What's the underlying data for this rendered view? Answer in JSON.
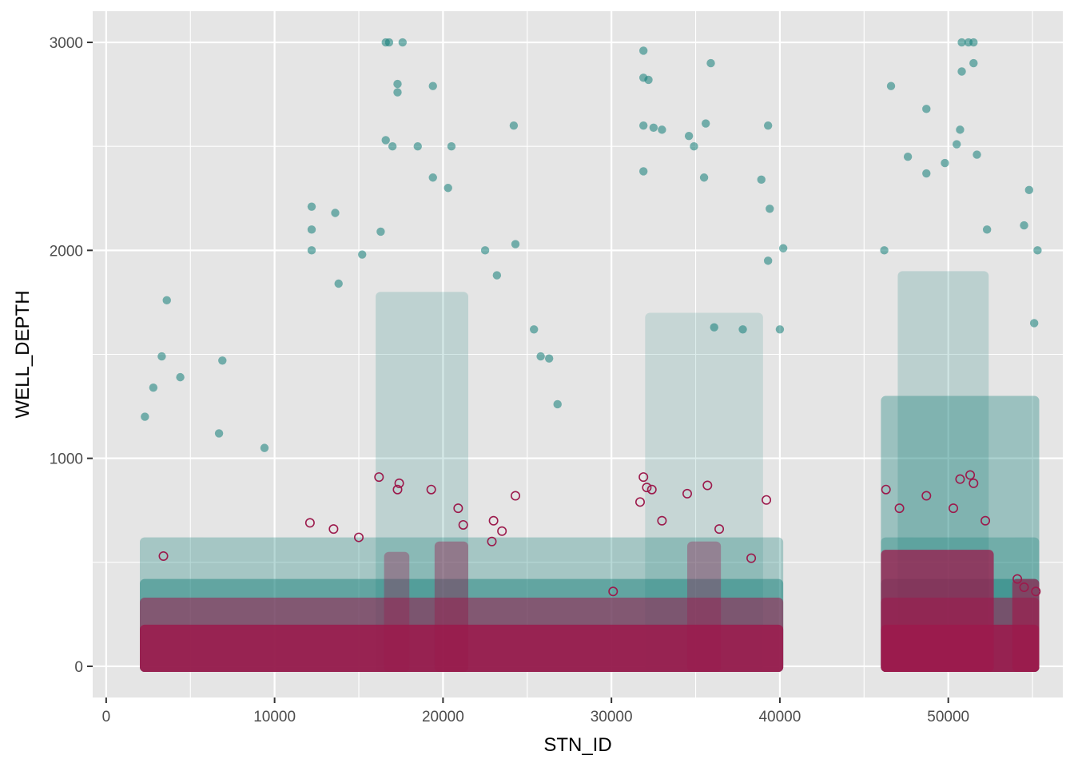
{
  "chart_data": {
    "type": "scatter",
    "title": "",
    "xlabel": "STN_ID",
    "ylabel": "WELL_DEPTH",
    "xlim": [
      -800,
      56800
    ],
    "ylim": [
      -150,
      3150
    ],
    "x_ticks": [
      0,
      10000,
      20000,
      30000,
      40000,
      50000
    ],
    "x_tick_labels": [
      "0",
      "10000",
      "20000",
      "30000",
      "40000",
      "50000"
    ],
    "y_ticks": [
      0,
      1000,
      2000,
      3000
    ],
    "y_tick_labels": [
      "0",
      "1000",
      "2000",
      "3000"
    ],
    "grid": true,
    "legend": "none",
    "background": "#e5e5e5",
    "grid_color": "#ffffff",
    "series": [
      {
        "marker": "filled-circle",
        "color": "#127d78",
        "opacity": 0.55,
        "points": [
          [
            2300,
            1200
          ],
          [
            2800,
            1340
          ],
          [
            3300,
            1490
          ],
          [
            3600,
            1760
          ],
          [
            4400,
            1390
          ],
          [
            6900,
            1470
          ],
          [
            6700,
            1120
          ],
          [
            9400,
            1050
          ],
          [
            12200,
            2210
          ],
          [
            12200,
            2100
          ],
          [
            12200,
            2000
          ],
          [
            13600,
            2180
          ],
          [
            13800,
            1840
          ],
          [
            15200,
            1980
          ],
          [
            16300,
            2090
          ],
          [
            16600,
            3000
          ],
          [
            16800,
            3000
          ],
          [
            17600,
            3000
          ],
          [
            16600,
            2530
          ],
          [
            17000,
            2500
          ],
          [
            17300,
            2800
          ],
          [
            17300,
            2760
          ],
          [
            19400,
            2790
          ],
          [
            19400,
            2350
          ],
          [
            18500,
            2500
          ],
          [
            20500,
            2500
          ],
          [
            20300,
            2300
          ],
          [
            22500,
            2000
          ],
          [
            24200,
            2600
          ],
          [
            24300,
            2030
          ],
          [
            23200,
            1880
          ],
          [
            25400,
            1620
          ],
          [
            25800,
            1490
          ],
          [
            26300,
            1480
          ],
          [
            26800,
            1260
          ],
          [
            31900,
            2960
          ],
          [
            31900,
            2830
          ],
          [
            32200,
            2820
          ],
          [
            31900,
            2600
          ],
          [
            32500,
            2590
          ],
          [
            31900,
            2380
          ],
          [
            33000,
            2580
          ],
          [
            34600,
            2550
          ],
          [
            34900,
            2500
          ],
          [
            35600,
            2610
          ],
          [
            35900,
            2900
          ],
          [
            35500,
            2350
          ],
          [
            39300,
            2600
          ],
          [
            38900,
            2340
          ],
          [
            39400,
            2200
          ],
          [
            40200,
            2010
          ],
          [
            39300,
            1950
          ],
          [
            36100,
            1630
          ],
          [
            37800,
            1620
          ],
          [
            40000,
            1620
          ],
          [
            46600,
            2790
          ],
          [
            48700,
            2680
          ],
          [
            50800,
            3000
          ],
          [
            51200,
            3000
          ],
          [
            51500,
            3000
          ],
          [
            50800,
            2860
          ],
          [
            51500,
            2900
          ],
          [
            50700,
            2580
          ],
          [
            50500,
            2510
          ],
          [
            54500,
            2120
          ],
          [
            54800,
            2290
          ],
          [
            55300,
            2000
          ],
          [
            55100,
            1650
          ],
          [
            46200,
            2000
          ],
          [
            47600,
            2450
          ],
          [
            48700,
            2370
          ],
          [
            49800,
            2420
          ],
          [
            51700,
            2460
          ],
          [
            52300,
            2100
          ]
        ]
      },
      {
        "marker": "open-circle",
        "color": "#9c1a4c",
        "opacity": 1.0,
        "points": [
          [
            16200,
            910
          ],
          [
            17400,
            880
          ],
          [
            17300,
            850
          ],
          [
            19300,
            850
          ],
          [
            20900,
            760
          ],
          [
            23000,
            700
          ],
          [
            23500,
            650
          ],
          [
            24300,
            820
          ],
          [
            31900,
            910
          ],
          [
            32100,
            860
          ],
          [
            32400,
            850
          ],
          [
            31700,
            790
          ],
          [
            33000,
            700
          ],
          [
            34500,
            830
          ],
          [
            35700,
            870
          ],
          [
            39200,
            800
          ],
          [
            46300,
            850
          ],
          [
            47100,
            760
          ],
          [
            48700,
            820
          ],
          [
            50700,
            900
          ],
          [
            51300,
            920
          ],
          [
            51500,
            880
          ],
          [
            50300,
            760
          ],
          [
            52200,
            700
          ],
          [
            54100,
            420
          ],
          [
            54500,
            380
          ],
          [
            55200,
            360
          ],
          [
            12100,
            690
          ],
          [
            13500,
            660
          ],
          [
            15000,
            620
          ],
          [
            21200,
            680
          ],
          [
            22900,
            600
          ],
          [
            30100,
            360
          ],
          [
            36400,
            660
          ],
          [
            38300,
            520
          ],
          [
            3400,
            530
          ]
        ]
      }
    ]
  }
}
